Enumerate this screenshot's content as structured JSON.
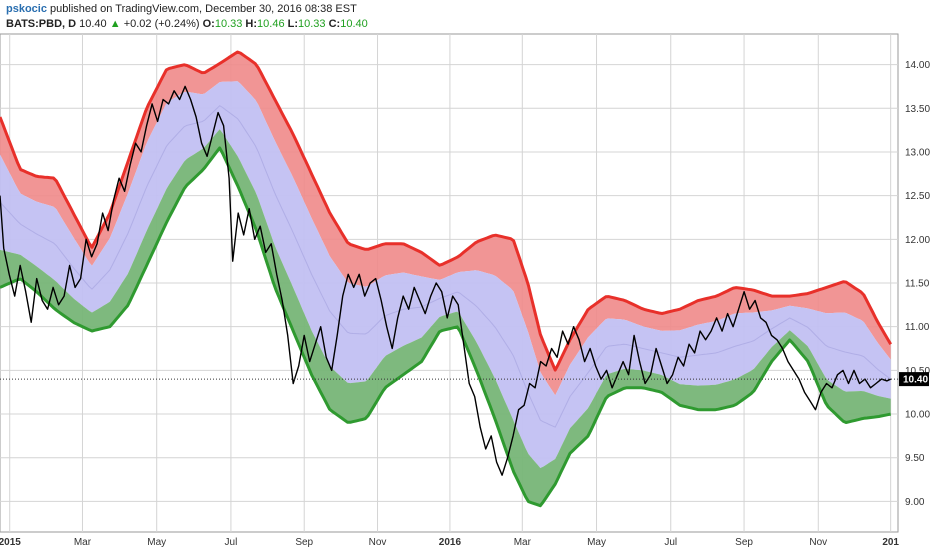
{
  "header": {
    "author": "pskocic",
    "published": "published on TradingView.com, December 30, 2016 08:38 EST",
    "symbol": "BATS:PBD, D",
    "last": "10.40",
    "change": "+0.02 (+0.24%)",
    "o_label": "O:",
    "o_value": "10.33",
    "h_label": "H:",
    "h_value": "10.46",
    "l_label": "L:",
    "l_value": "10.33",
    "c_label": "C:",
    "c_value": "10.40"
  },
  "chart_data": {
    "type": "line",
    "title": "",
    "xlabel": "",
    "ylabel": "",
    "ylim": [
      8.65,
      14.35
    ],
    "grid": true,
    "colors": {
      "upper_band": "#f08a8a",
      "upper_line": "#e8302a",
      "mid_band": "#c2c0f2",
      "lower_band": "#77b577",
      "lower_line": "#2f9a30",
      "price": "#000000",
      "current_price_tag": "#000000"
    },
    "y_ticks": [
      "9.00",
      "9.50",
      "10.00",
      "10.50",
      "11.00",
      "11.50",
      "12.00",
      "12.50",
      "13.00",
      "13.50",
      "14.00"
    ],
    "x_ticks": [
      {
        "label": "2015",
        "t": 0.03,
        "bold": true
      },
      {
        "label": "Mar",
        "t": 4.0
      },
      {
        "label": "May",
        "t": 8.05
      },
      {
        "label": "Jul",
        "t": 12.1
      },
      {
        "label": "Sep",
        "t": 16.1
      },
      {
        "label": "Nov",
        "t": 20.1
      },
      {
        "label": "2016",
        "t": 24.05,
        "bold": true
      },
      {
        "label": "Mar",
        "t": 28.0
      },
      {
        "label": "May",
        "t": 32.05
      },
      {
        "label": "Jul",
        "t": 36.1
      },
      {
        "label": "Sep",
        "t": 40.1
      },
      {
        "label": "Nov",
        "t": 44.15
      },
      {
        "label": "201",
        "t": 48.1,
        "bold": true
      }
    ],
    "current_price": "10.40",
    "series": [
      {
        "role": "upper_band",
        "points": [
          [
            -0.5,
            13.4
          ],
          [
            0.6,
            12.8
          ],
          [
            1.5,
            12.72
          ],
          [
            2.5,
            12.7
          ],
          [
            3.5,
            12.3
          ],
          [
            4.5,
            11.9
          ],
          [
            5.5,
            12.3
          ],
          [
            6.5,
            12.9
          ],
          [
            7.5,
            13.5
          ],
          [
            8.6,
            13.95
          ],
          [
            9.6,
            14.0
          ],
          [
            10.6,
            13.9
          ],
          [
            11.4,
            14.0
          ],
          [
            12.5,
            14.15
          ],
          [
            13.5,
            14.0
          ],
          [
            14.5,
            13.6
          ],
          [
            15.5,
            13.2
          ],
          [
            16.5,
            12.75
          ],
          [
            17.5,
            12.3
          ],
          [
            18.5,
            11.95
          ],
          [
            19.5,
            11.88
          ],
          [
            20.5,
            11.95
          ],
          [
            21.5,
            11.95
          ],
          [
            22.5,
            11.85
          ],
          [
            23.5,
            11.7
          ],
          [
            24.5,
            11.8
          ],
          [
            25.5,
            11.97
          ],
          [
            26.5,
            12.05
          ],
          [
            27.5,
            12.0
          ],
          [
            28.3,
            11.5
          ],
          [
            29.0,
            10.9
          ],
          [
            29.8,
            10.5
          ],
          [
            30.6,
            10.85
          ],
          [
            31.6,
            11.2
          ],
          [
            32.6,
            11.35
          ],
          [
            33.6,
            11.3
          ],
          [
            34.6,
            11.2
          ],
          [
            35.6,
            11.15
          ],
          [
            36.6,
            11.2
          ],
          [
            37.6,
            11.3
          ],
          [
            38.6,
            11.35
          ],
          [
            39.6,
            11.45
          ],
          [
            40.6,
            11.42
          ],
          [
            41.6,
            11.35
          ],
          [
            42.6,
            11.35
          ],
          [
            43.6,
            11.38
          ],
          [
            44.6,
            11.45
          ],
          [
            45.6,
            11.52
          ],
          [
            46.6,
            11.38
          ],
          [
            47.4,
            11.05
          ],
          [
            48.1,
            10.8
          ]
        ]
      },
      {
        "role": "lower_band",
        "points": [
          [
            -0.5,
            11.45
          ],
          [
            0.6,
            11.55
          ],
          [
            1.5,
            11.4
          ],
          [
            2.5,
            11.2
          ],
          [
            3.5,
            11.05
          ],
          [
            4.5,
            10.95
          ],
          [
            5.5,
            11.0
          ],
          [
            6.5,
            11.25
          ],
          [
            7.5,
            11.7
          ],
          [
            8.6,
            12.2
          ],
          [
            9.6,
            12.6
          ],
          [
            10.6,
            12.8
          ],
          [
            11.5,
            13.05
          ],
          [
            12.5,
            12.6
          ],
          [
            13.5,
            12.1
          ],
          [
            14.5,
            11.45
          ],
          [
            15.5,
            10.95
          ],
          [
            16.5,
            10.45
          ],
          [
            17.5,
            10.05
          ],
          [
            18.5,
            9.9
          ],
          [
            19.5,
            9.95
          ],
          [
            20.5,
            10.3
          ],
          [
            21.5,
            10.45
          ],
          [
            22.5,
            10.6
          ],
          [
            23.5,
            10.95
          ],
          [
            24.5,
            11.0
          ],
          [
            25.5,
            10.5
          ],
          [
            26.5,
            9.95
          ],
          [
            27.5,
            9.35
          ],
          [
            28.3,
            9.0
          ],
          [
            29.0,
            8.95
          ],
          [
            29.8,
            9.2
          ],
          [
            30.6,
            9.55
          ],
          [
            31.6,
            9.75
          ],
          [
            32.6,
            10.2
          ],
          [
            33.6,
            10.3
          ],
          [
            34.6,
            10.3
          ],
          [
            35.6,
            10.25
          ],
          [
            36.6,
            10.1
          ],
          [
            37.6,
            10.05
          ],
          [
            38.6,
            10.05
          ],
          [
            39.6,
            10.1
          ],
          [
            40.6,
            10.25
          ],
          [
            41.6,
            10.6
          ],
          [
            42.6,
            10.85
          ],
          [
            43.6,
            10.6
          ],
          [
            44.6,
            10.1
          ],
          [
            45.6,
            9.9
          ],
          [
            46.6,
            9.95
          ],
          [
            47.4,
            9.97
          ],
          [
            48.1,
            10.0
          ]
        ]
      },
      {
        "role": "price",
        "points": [
          [
            -0.5,
            12.5
          ],
          [
            -0.3,
            11.9
          ],
          [
            0.0,
            11.6
          ],
          [
            0.3,
            11.35
          ],
          [
            0.6,
            11.7
          ],
          [
            0.9,
            11.4
          ],
          [
            1.2,
            11.05
          ],
          [
            1.5,
            11.55
          ],
          [
            1.8,
            11.3
          ],
          [
            2.1,
            11.2
          ],
          [
            2.4,
            11.45
          ],
          [
            2.7,
            11.25
          ],
          [
            3.0,
            11.35
          ],
          [
            3.3,
            11.7
          ],
          [
            3.6,
            11.45
          ],
          [
            3.9,
            11.55
          ],
          [
            4.2,
            12.0
          ],
          [
            4.5,
            11.8
          ],
          [
            4.8,
            11.95
          ],
          [
            5.1,
            12.3
          ],
          [
            5.4,
            12.1
          ],
          [
            5.7,
            12.45
          ],
          [
            6.0,
            12.7
          ],
          [
            6.3,
            12.55
          ],
          [
            6.6,
            12.85
          ],
          [
            6.9,
            13.1
          ],
          [
            7.2,
            13.0
          ],
          [
            7.5,
            13.3
          ],
          [
            7.8,
            13.55
          ],
          [
            8.1,
            13.35
          ],
          [
            8.4,
            13.6
          ],
          [
            8.7,
            13.55
          ],
          [
            9.0,
            13.7
          ],
          [
            9.3,
            13.6
          ],
          [
            9.6,
            13.75
          ],
          [
            9.9,
            13.6
          ],
          [
            10.2,
            13.4
          ],
          [
            10.5,
            13.1
          ],
          [
            10.8,
            12.95
          ],
          [
            11.1,
            13.2
          ],
          [
            11.4,
            13.45
          ],
          [
            11.7,
            13.3
          ],
          [
            12.0,
            12.7
          ],
          [
            12.2,
            11.75
          ],
          [
            12.5,
            12.3
          ],
          [
            12.8,
            12.05
          ],
          [
            13.1,
            12.35
          ],
          [
            13.4,
            12.0
          ],
          [
            13.7,
            12.15
          ],
          [
            14.0,
            11.85
          ],
          [
            14.3,
            11.95
          ],
          [
            14.6,
            11.6
          ],
          [
            14.9,
            11.3
          ],
          [
            15.2,
            10.9
          ],
          [
            15.5,
            10.35
          ],
          [
            15.8,
            10.55
          ],
          [
            16.1,
            10.9
          ],
          [
            16.4,
            10.6
          ],
          [
            16.7,
            10.8
          ],
          [
            17.0,
            11.0
          ],
          [
            17.3,
            10.65
          ],
          [
            17.6,
            10.5
          ],
          [
            17.9,
            10.9
          ],
          [
            18.2,
            11.35
          ],
          [
            18.5,
            11.6
          ],
          [
            18.8,
            11.45
          ],
          [
            19.1,
            11.6
          ],
          [
            19.4,
            11.35
          ],
          [
            19.7,
            11.5
          ],
          [
            20.0,
            11.55
          ],
          [
            20.3,
            11.3
          ],
          [
            20.6,
            11.0
          ],
          [
            20.9,
            10.75
          ],
          [
            21.2,
            11.1
          ],
          [
            21.5,
            11.35
          ],
          [
            21.8,
            11.2
          ],
          [
            22.1,
            11.45
          ],
          [
            22.4,
            11.3
          ],
          [
            22.7,
            11.15
          ],
          [
            23.0,
            11.35
          ],
          [
            23.3,
            11.5
          ],
          [
            23.6,
            11.4
          ],
          [
            23.9,
            11.1
          ],
          [
            24.2,
            11.35
          ],
          [
            24.5,
            11.25
          ],
          [
            24.8,
            10.8
          ],
          [
            25.1,
            10.35
          ],
          [
            25.4,
            10.2
          ],
          [
            25.7,
            9.85
          ],
          [
            26.0,
            9.6
          ],
          [
            26.3,
            9.75
          ],
          [
            26.6,
            9.45
          ],
          [
            26.9,
            9.3
          ],
          [
            27.2,
            9.5
          ],
          [
            27.5,
            9.75
          ],
          [
            27.8,
            10.05
          ],
          [
            28.1,
            10.1
          ],
          [
            28.4,
            10.35
          ],
          [
            28.7,
            10.3
          ],
          [
            29.0,
            10.6
          ],
          [
            29.3,
            10.55
          ],
          [
            29.6,
            10.75
          ],
          [
            29.9,
            10.65
          ],
          [
            30.2,
            10.95
          ],
          [
            30.5,
            10.8
          ],
          [
            30.8,
            11.0
          ],
          [
            31.1,
            10.85
          ],
          [
            31.4,
            10.6
          ],
          [
            31.7,
            10.75
          ],
          [
            32.0,
            10.55
          ],
          [
            32.3,
            10.4
          ],
          [
            32.6,
            10.5
          ],
          [
            32.9,
            10.3
          ],
          [
            33.2,
            10.45
          ],
          [
            33.5,
            10.6
          ],
          [
            33.8,
            10.45
          ],
          [
            34.1,
            10.9
          ],
          [
            34.4,
            10.6
          ],
          [
            34.7,
            10.35
          ],
          [
            35.0,
            10.45
          ],
          [
            35.3,
            10.75
          ],
          [
            35.6,
            10.55
          ],
          [
            35.9,
            10.35
          ],
          [
            36.2,
            10.45
          ],
          [
            36.5,
            10.65
          ],
          [
            36.8,
            10.55
          ],
          [
            37.1,
            10.8
          ],
          [
            37.4,
            10.7
          ],
          [
            37.7,
            10.95
          ],
          [
            38.0,
            10.85
          ],
          [
            38.3,
            10.95
          ],
          [
            38.6,
            11.1
          ],
          [
            38.9,
            10.95
          ],
          [
            39.2,
            11.15
          ],
          [
            39.5,
            11.0
          ],
          [
            39.8,
            11.2
          ],
          [
            40.1,
            11.4
          ],
          [
            40.4,
            11.2
          ],
          [
            40.7,
            11.3
          ],
          [
            41.0,
            11.1
          ],
          [
            41.3,
            11.05
          ],
          [
            41.6,
            10.9
          ],
          [
            41.9,
            10.85
          ],
          [
            42.2,
            10.75
          ],
          [
            42.5,
            10.6
          ],
          [
            42.8,
            10.5
          ],
          [
            43.1,
            10.4
          ],
          [
            43.4,
            10.25
          ],
          [
            43.7,
            10.15
          ],
          [
            44.0,
            10.05
          ],
          [
            44.3,
            10.25
          ],
          [
            44.6,
            10.35
          ],
          [
            44.9,
            10.3
          ],
          [
            45.2,
            10.45
          ],
          [
            45.5,
            10.5
          ],
          [
            45.8,
            10.35
          ],
          [
            46.1,
            10.5
          ],
          [
            46.4,
            10.35
          ],
          [
            46.7,
            10.4
          ],
          [
            47.0,
            10.3
          ],
          [
            47.3,
            10.35
          ],
          [
            47.6,
            10.4
          ],
          [
            47.9,
            10.38
          ],
          [
            48.1,
            10.4
          ]
        ]
      }
    ]
  }
}
